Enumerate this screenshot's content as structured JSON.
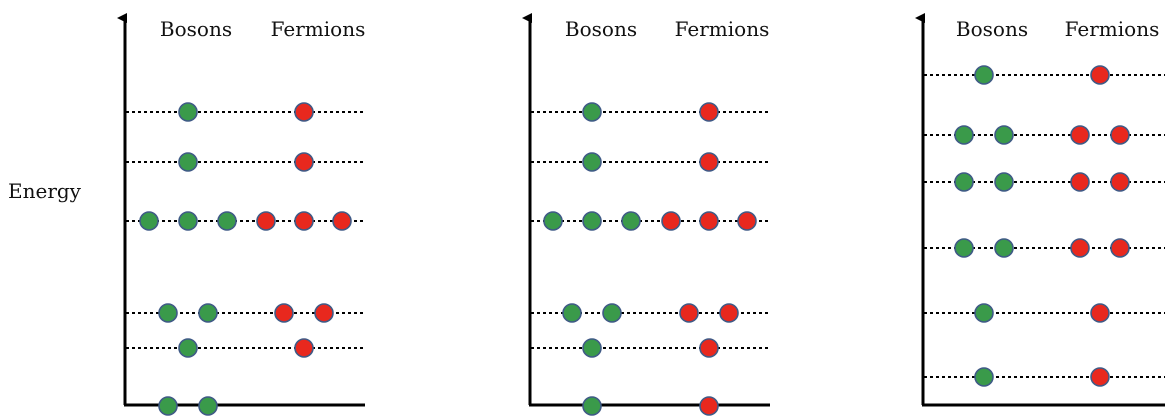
{
  "energy_label": "Energy",
  "panels": [
    {
      "bosons_label": "Bosons",
      "fermions_label": "Fermions",
      "levels": [
        {
          "bosons": 2,
          "fermions": 0
        },
        {
          "bosons": 1,
          "fermions": 1
        },
        {
          "bosons": 2,
          "fermions": 2
        },
        {
          "bosons": 3,
          "fermions": 3
        },
        {
          "bosons": 1,
          "fermions": 1
        },
        {
          "bosons": 1,
          "fermions": 1
        }
      ]
    },
    {
      "bosons_label": "Bosons",
      "fermions_label": "Fermions",
      "levels": [
        {
          "bosons": 1,
          "fermions": 1
        },
        {
          "bosons": 1,
          "fermions": 1
        },
        {
          "bosons": 2,
          "fermions": 2
        },
        {
          "bosons": 3,
          "fermions": 3
        },
        {
          "bosons": 1,
          "fermions": 1
        },
        {
          "bosons": 1,
          "fermions": 1
        }
      ]
    },
    {
      "bosons_label": "Bosons",
      "fermions_label": "Fermions",
      "levels": [
        {
          "bosons": 1,
          "fermions": 1
        },
        {
          "bosons": 1,
          "fermions": 1
        },
        {
          "bosons": 2,
          "fermions": 2
        },
        {
          "bosons": 2,
          "fermions": 2
        },
        {
          "bosons": 2,
          "fermions": 2
        },
        {
          "bosons": 1,
          "fermions": 1
        }
      ]
    }
  ],
  "colors": {
    "boson_fill": "#3a9a4a",
    "fermion_fill": "#e8281e",
    "particle_stroke": "#3f5a86",
    "axis": "#000000",
    "level_line": "#000000"
  }
}
